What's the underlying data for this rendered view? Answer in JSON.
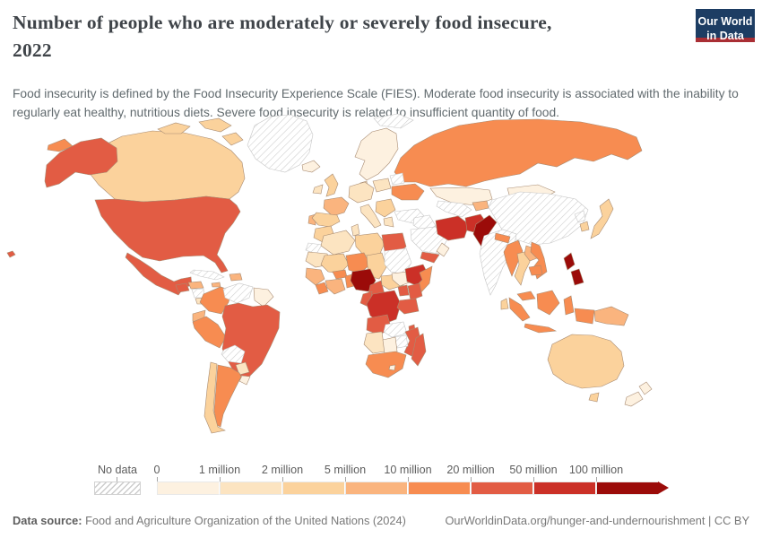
{
  "header": {
    "title_line1": "Number of people who are moderately or severely food insecure,",
    "title_line2": "2022",
    "logo": {
      "line1": "Our World",
      "line2": "in Data"
    }
  },
  "subtitle": "Food insecurity is defined by the Food Insecurity Experience Scale (FIES). Moderate food insecurity is associated with the inability to regularly eat healthy, nutritious diets. Severe food insecurity is related to insufficient quantity of food.",
  "colors": {
    "logo_bg": "#1d3d63",
    "logo_underline": "#a92e34",
    "title_text": "#3f4449",
    "subtitle_text": "#616a6e",
    "footer_text": "#787878",
    "country_border": "#a88b72",
    "nodata_border": "#c6c6c6",
    "nodata_hatch_line": "#cccccc"
  },
  "legend": {
    "no_data_label": "No data"
  },
  "chart_data": {
    "type": "choropleth",
    "title": "Number of people who are moderately or severely food insecure",
    "year": "2022",
    "unit": "people",
    "legend_position": "bottom",
    "no_data_label": "No data",
    "bin_edges": [
      "0",
      "1 million",
      "2 million",
      "5 million",
      "10 million",
      "20 million",
      "50 million",
      "100 million"
    ],
    "bin_labels": [
      "0-1 million",
      "1-2 million",
      "2-5 million",
      "5-10 million",
      "10-20 million",
      "20-50 million",
      "50-100 million",
      "100 million+"
    ],
    "bin_colors": [
      "#fdf1e0",
      "#fce4c1",
      "#fbd29c",
      "#fab47e",
      "#f78c51",
      "#e25c44",
      "#cb3027",
      "#9b0b09"
    ],
    "regions": {
      "greenland": 0,
      "svalbard": 0,
      "iceland": 1,
      "canada": 3,
      "alaska": 6,
      "chukotka": 5,
      "hawaii": 6,
      "usa": 6,
      "mexico": 6,
      "guatemala": 6,
      "honduras": 4,
      "nicaragua": 0,
      "costa-rica": 2,
      "panama": 2,
      "cuba": 0,
      "jamaica": 4,
      "hispaniola": 4,
      "colombia": 5,
      "venezuela": 0,
      "guyanas": 1,
      "ecuador": 4,
      "peru": 5,
      "brazil": 6,
      "bolivia": 0,
      "paraguay": 2,
      "uruguay": 1,
      "chile": 3,
      "argentina": 5,
      "scandinavia": 1,
      "denmark": 2,
      "uk": 3,
      "ireland": 2,
      "france": 4,
      "portugal": 4,
      "spain": 3,
      "central-europe": 2,
      "italy": 2,
      "poland-baltics": 2,
      "belarus": 0,
      "ukraine": 5,
      "balkans": 3,
      "greece": 2,
      "turkey": 0,
      "russia": 5,
      "kazakhstan": 1,
      "uzbekistan-turkmenistan": 0,
      "kyrgyzstan-tajikistan": 4,
      "mongolia": 1,
      "china": 0,
      "north-korea": 0,
      "south-korea": 3,
      "japan": 3,
      "syria-iraq": 0,
      "saudi-arabia": 0,
      "yemen": 6,
      "oman": 1,
      "iran": 7,
      "afghanistan": 7,
      "pakistan": 8,
      "india": 0,
      "nepal": 5,
      "bangladesh": 8,
      "sri-lanka": 3,
      "myanmar": 5,
      "thailand": 3,
      "laos": 4,
      "vietnam": 5,
      "cambodia": 5,
      "malaysia": 5,
      "sumatra": 5,
      "java": 5,
      "borneo": 5,
      "sulawesi": 5,
      "philippines": 8,
      "west-papua": 5,
      "papua-new-guinea": 4,
      "australia": 3,
      "tasmania": 3,
      "new-zealand": 1,
      "morocco": 3,
      "western-sahara": 0,
      "algeria": 2,
      "tunisia": 2,
      "libya": 3,
      "egypt": 6,
      "mauritania": 2,
      "mali": 3,
      "niger": 5,
      "chad": 3,
      "sudan": 0,
      "senegal-guinea": 4,
      "sierra-leone-liberia": 5,
      "ivory-coast-ghana": 4,
      "burkina-faso": 5,
      "togo-benin": 5,
      "nigeria": 8,
      "cameroon": 6,
      "central-african-republic": 3,
      "south-sudan": 1,
      "ethiopia": 7,
      "somalia": 5,
      "kenya": 6,
      "uganda": 6,
      "drc": 7,
      "congo-gabon": 6,
      "tanzania": 6,
      "angola": 6,
      "zambia": 0,
      "malawi": 6,
      "mozambique": 6,
      "zimbabwe": 0,
      "namibia": 2,
      "botswana": 1,
      "south-africa": 5,
      "lesotho": 1,
      "madagascar": 6
    }
  },
  "footer": {
    "source_label": "Data source:",
    "source": "Food and Agriculture Organization of the United Nations (2024)",
    "link": "OurWorldinData.org/hunger-and-undernourishment",
    "separator": "|",
    "license": "CC BY"
  }
}
